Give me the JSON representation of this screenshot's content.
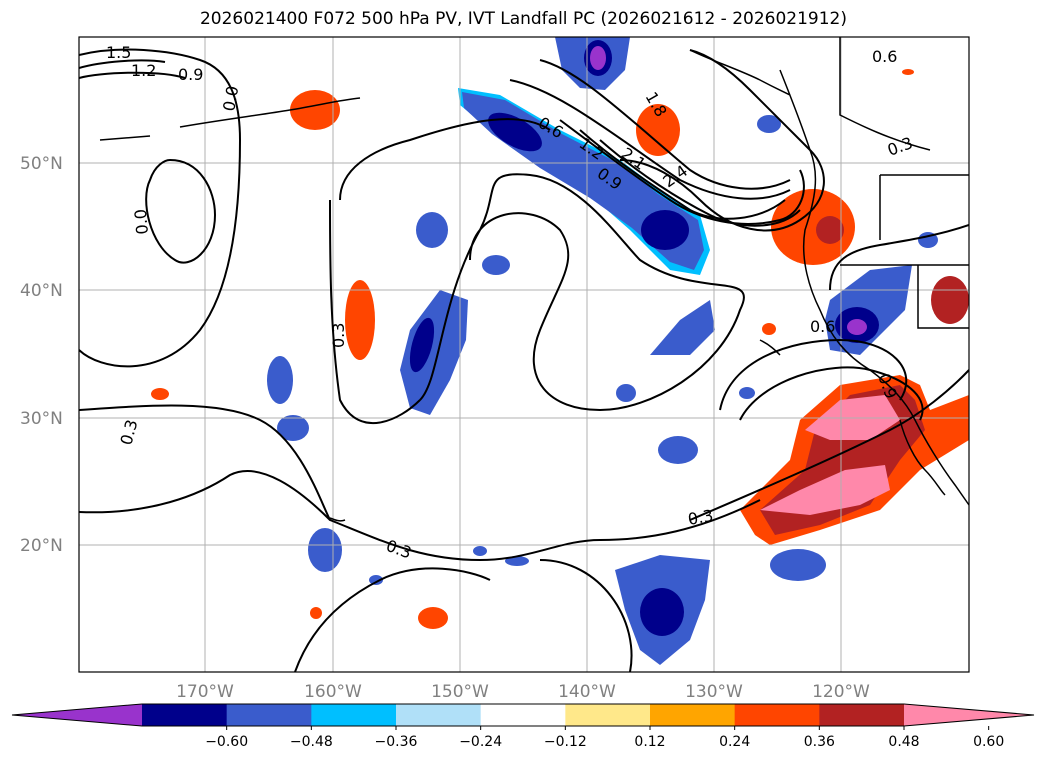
{
  "title": "2026021400 F072 500 hPa PV, IVT Landfall PC (2026021612 - 2026021912)",
  "lat_labels": [
    "50°N",
    "40°N",
    "30°N",
    "20°N"
  ],
  "lon_labels": [
    "170°W",
    "160°W",
    "150°W",
    "140°W",
    "130°W",
    "120°W"
  ],
  "colorbar": {
    "ticks": [
      "−0.60",
      "−0.48",
      "−0.36",
      "−0.24",
      "−0.12",
      "0.12",
      "0.24",
      "0.36",
      "0.48",
      "0.60"
    ],
    "colors": [
      "#9933cc",
      "#00008b",
      "#3a5ccc",
      "#00bfff",
      "#b0e0f8",
      "#ffffff",
      "#ffe88a",
      "#ffa500",
      "#ff4500",
      "#b22222",
      "#ff88aa"
    ]
  },
  "contour_labels": [
    "1.5",
    "1.2",
    "0.9",
    "0.0",
    "0.6",
    "1.8",
    "1.2",
    "2.1",
    "0.9",
    "2.4",
    "0.6",
    "0.3",
    "0.0",
    "0.3",
    "0.3",
    "0.6",
    "0.9",
    "0.3",
    "0.3"
  ]
}
